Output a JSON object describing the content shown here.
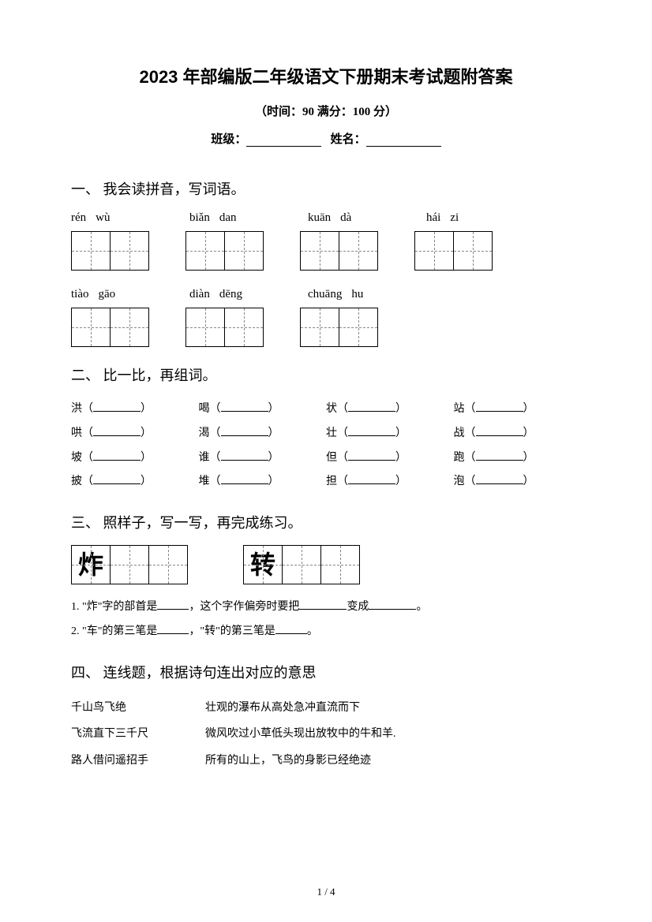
{
  "title": "2023 年部编版二年级语文下册期末考试题附答案",
  "subtitle": "（时间：90  满分：100 分）",
  "info": {
    "class_label": "班级：",
    "name_label": "姓名："
  },
  "section1": {
    "heading": "一、 我会读拼音，写词语。",
    "row1": [
      {
        "syllables": [
          "rén",
          "wù"
        ]
      },
      {
        "syllables": [
          "biǎn",
          "dan"
        ]
      },
      {
        "syllables": [
          "kuān",
          "dà"
        ]
      },
      {
        "syllables": [
          "hái",
          "zi"
        ]
      }
    ],
    "row2": [
      {
        "syllables": [
          "tiào",
          "gāo"
        ]
      },
      {
        "syllables": [
          "diàn",
          "dēng"
        ]
      },
      {
        "syllables": [
          "chuāng",
          "hu"
        ]
      }
    ]
  },
  "section2": {
    "heading": "二、 比一比，再组词。",
    "rows": [
      [
        "洪",
        "喝",
        "状",
        "站"
      ],
      [
        "哄",
        "渴",
        "壮",
        "战"
      ],
      [
        "坡",
        "谁",
        "但",
        "跑"
      ],
      [
        "披",
        "堆",
        "担",
        "泡"
      ]
    ]
  },
  "section3": {
    "heading": "三、 照样子，写一写，再完成练习。",
    "example_chars": [
      "炸",
      "转"
    ],
    "q1_prefix": "1.  \"炸\"字的部首是",
    "q1_mid": "，这个字作偏旁时要把",
    "q1_end1": "变成",
    "q1_end2": "。",
    "q2_prefix": "2.  \"车\"的第三笔是",
    "q2_mid": "，\"转\"的第三笔是",
    "q2_end": "。"
  },
  "section4": {
    "heading": "四、 连线题，根据诗句连出对应的意思",
    "pairs": [
      {
        "left": "千山鸟飞绝",
        "right": "壮观的瀑布从高处急冲直流而下"
      },
      {
        "left": "飞流直下三千尺",
        "right": "微风吹过小草低头现出放牧中的牛和羊."
      },
      {
        "left": "路人借问遥招手",
        "right": "所有的山上，飞鸟的身影已经绝迹"
      }
    ]
  },
  "page_number": "1 / 4"
}
